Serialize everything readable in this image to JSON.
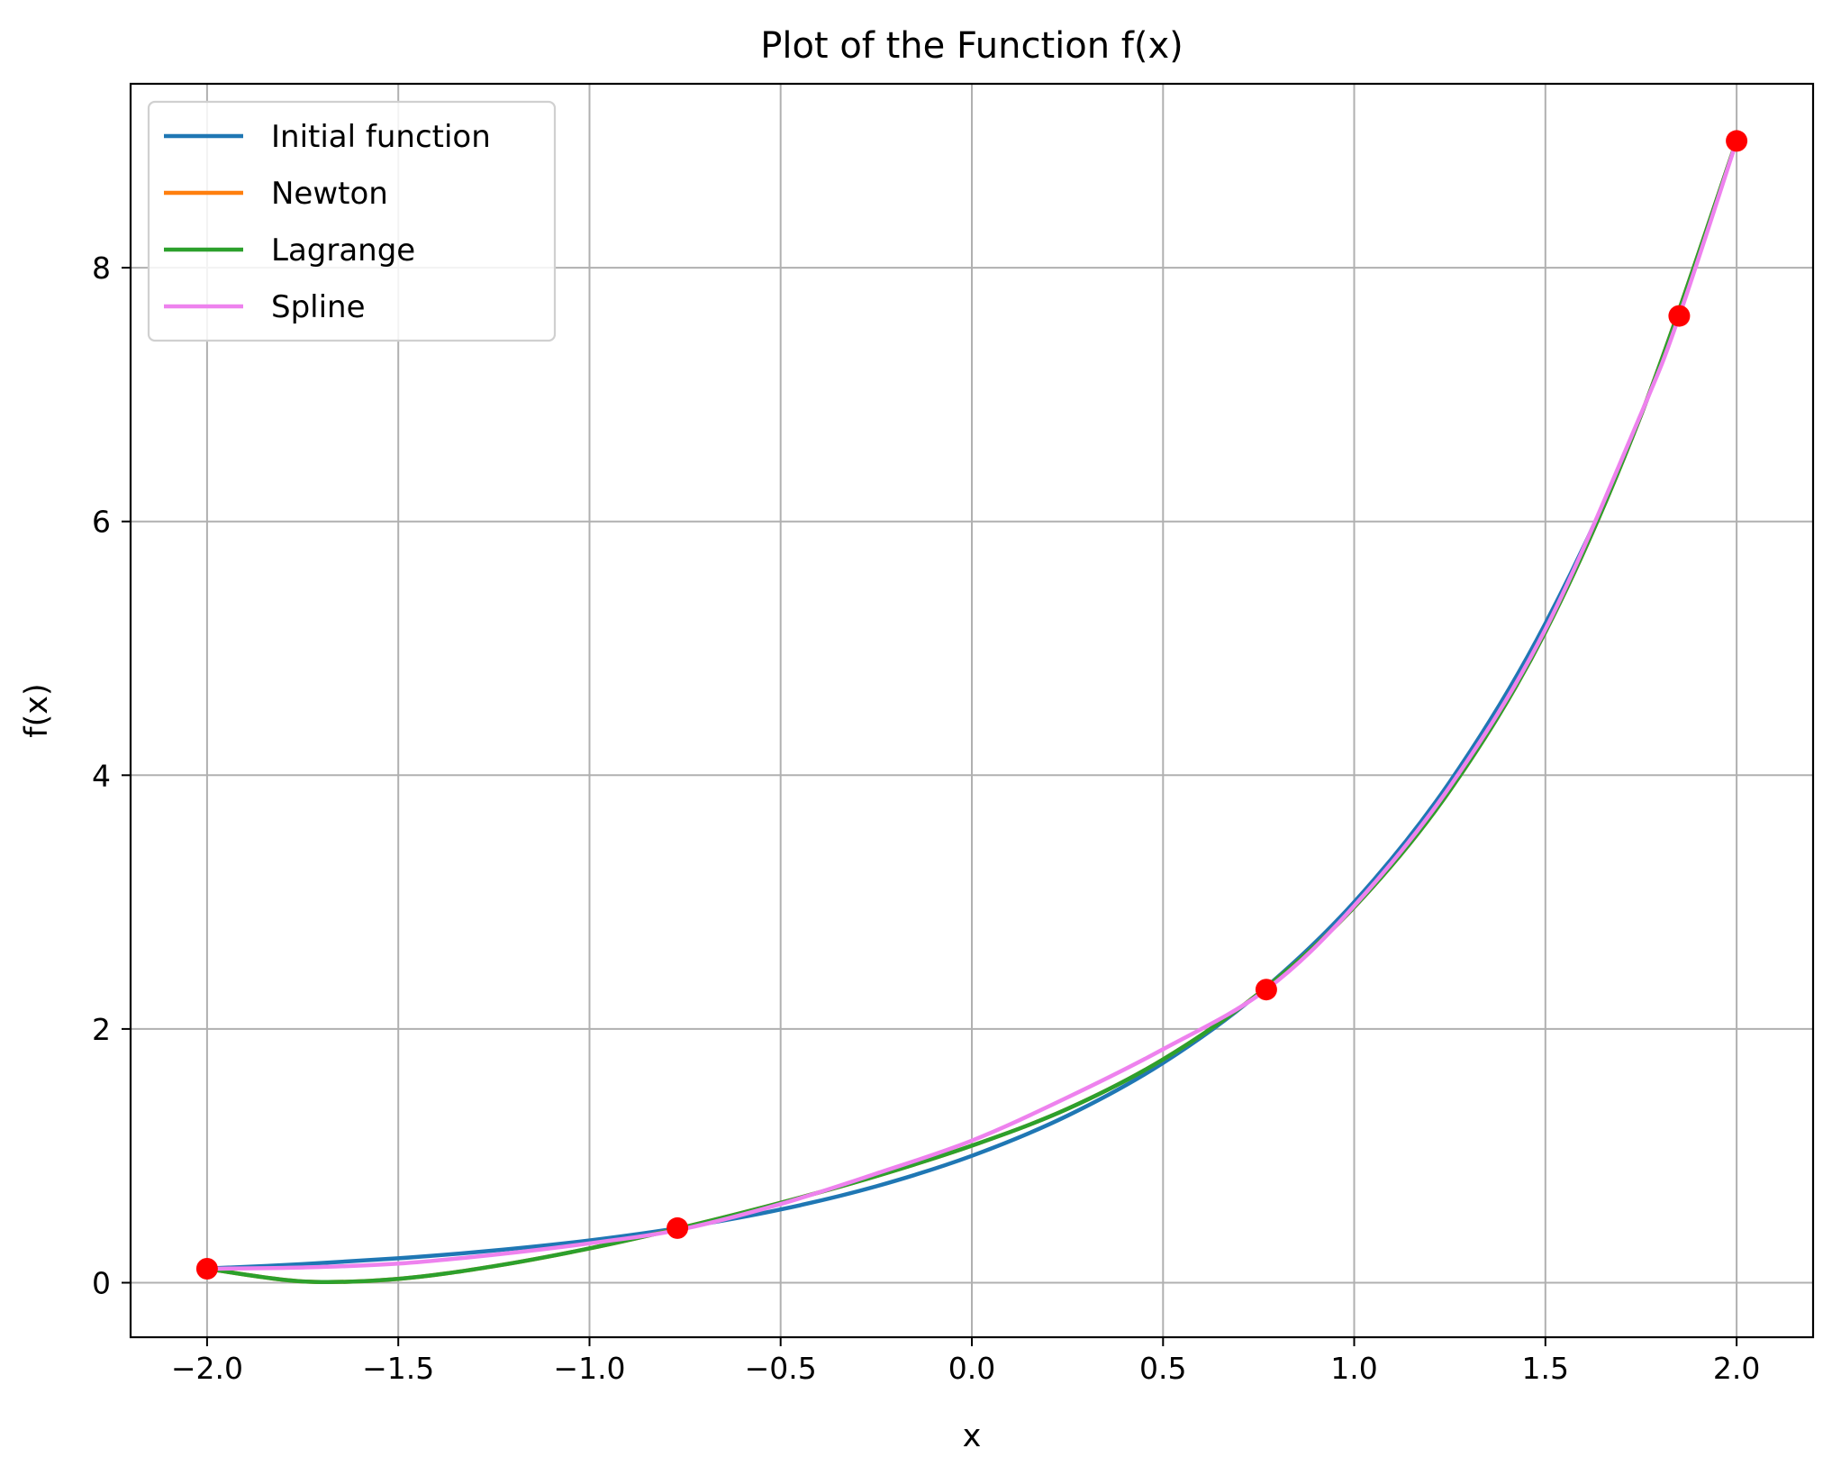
{
  "chart_data": {
    "type": "line",
    "title": "Plot of the Function f(x)",
    "xlabel": "x",
    "ylabel": "f(x)",
    "xlim": [
      -2.2,
      2.2
    ],
    "ylim": [
      -0.43,
      9.45
    ],
    "xticks": [
      -2.0,
      -1.5,
      -1.0,
      -0.5,
      0.0,
      0.5,
      1.0,
      1.5,
      2.0
    ],
    "xtick_labels": [
      "−2.0",
      "−1.5",
      "−1.0",
      "−0.5",
      "0.0",
      "0.5",
      "1.0",
      "1.5",
      "2.0"
    ],
    "yticks": [
      0,
      2,
      4,
      6,
      8
    ],
    "ytick_labels": [
      "0",
      "2",
      "4",
      "6",
      "8"
    ],
    "grid": true,
    "legend_position": "top-left",
    "series": [
      {
        "name": "Initial function",
        "color": "#1f77b4",
        "x": [
          -2.0,
          -1.75,
          -1.5,
          -1.25,
          -1.0,
          -0.75,
          -0.5,
          -0.25,
          0.0,
          0.25,
          0.5,
          0.75,
          1.0,
          1.25,
          1.5,
          1.75,
          2.0
        ],
        "y": [
          0.111,
          0.146,
          0.192,
          0.253,
          0.333,
          0.439,
          0.577,
          0.76,
          1.0,
          1.316,
          1.732,
          2.28,
          3.0,
          3.948,
          5.196,
          6.839,
          9.0
        ]
      },
      {
        "name": "Newton",
        "color": "#ff7f0e",
        "x": [
          -2.0,
          -1.75,
          -1.5,
          -1.25,
          -1.0,
          -0.75,
          -0.5,
          -0.25,
          0.0,
          0.25,
          0.5,
          0.75,
          1.0,
          1.25,
          1.5,
          1.75,
          2.0
        ],
        "y": [
          0.11,
          0.01,
          0.03,
          0.13,
          0.27,
          0.44,
          0.63,
          0.84,
          1.08,
          1.37,
          1.76,
          2.28,
          2.96,
          3.88,
          5.13,
          6.84,
          9.0
        ]
      },
      {
        "name": "Lagrange",
        "color": "#2ca02c",
        "x": [
          -2.0,
          -1.75,
          -1.5,
          -1.25,
          -1.0,
          -0.75,
          -0.5,
          -0.25,
          0.0,
          0.25,
          0.5,
          0.75,
          1.0,
          1.25,
          1.5,
          1.75,
          2.0
        ],
        "y": [
          0.11,
          0.01,
          0.03,
          0.13,
          0.27,
          0.44,
          0.63,
          0.84,
          1.08,
          1.37,
          1.76,
          2.28,
          2.96,
          3.88,
          5.13,
          6.84,
          9.0
        ]
      },
      {
        "name": "Spline",
        "color": "#ee82ee",
        "x": [
          -2.0,
          -1.75,
          -1.5,
          -1.25,
          -1.0,
          -0.76,
          -0.5,
          -0.25,
          0.0,
          0.25,
          0.5,
          0.77,
          1.0,
          1.25,
          1.5,
          1.75,
          1.85,
          2.0
        ],
        "y": [
          0.11,
          0.12,
          0.15,
          0.22,
          0.31,
          0.42,
          0.62,
          0.86,
          1.12,
          1.46,
          1.84,
          2.31,
          2.97,
          3.91,
          5.15,
          6.85,
          7.62,
          9.0
        ]
      }
    ],
    "nodes": {
      "color": "#ff0000",
      "x": [
        -2.0,
        -0.77,
        0.77,
        1.85,
        2.0
      ],
      "y": [
        0.11,
        0.43,
        2.31,
        7.62,
        9.0
      ]
    }
  }
}
